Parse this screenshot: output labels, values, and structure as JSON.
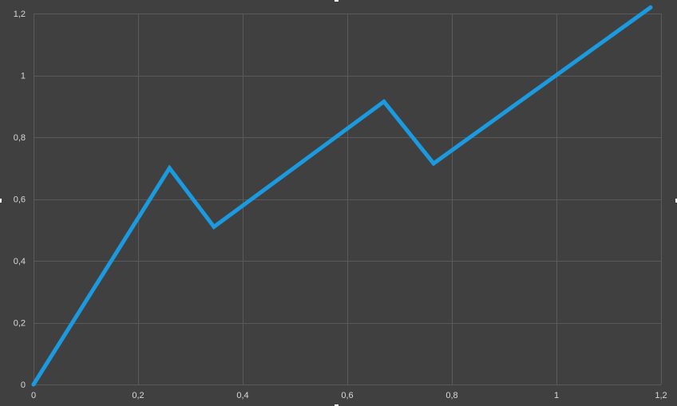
{
  "chart_data": {
    "type": "line",
    "title": "",
    "xlabel": "",
    "ylabel": "",
    "xlim": [
      0,
      1.2
    ],
    "ylim": [
      0,
      1.2
    ],
    "x_ticks": [
      0,
      0.2,
      0.4,
      0.6,
      0.8,
      1,
      1.2
    ],
    "y_ticks": [
      0,
      0.2,
      0.4,
      0.6,
      0.8,
      1,
      1.2
    ],
    "x_tick_labels": [
      "0",
      "0,2",
      "0,4",
      "0,6",
      "0,8",
      "1",
      "1,2"
    ],
    "y_tick_labels": [
      "0",
      "0,2",
      "0,4",
      "0,6",
      "0,8",
      "1",
      "1,2"
    ],
    "grid": true,
    "legend": "none",
    "series": [
      {
        "color": "#1b9ae0",
        "points": [
          {
            "x": 0,
            "y": 0
          },
          {
            "x": 0.26,
            "y": 0.7
          },
          {
            "x": 0.345,
            "y": 0.51
          },
          {
            "x": 0.67,
            "y": 0.915
          },
          {
            "x": 0.765,
            "y": 0.715
          },
          {
            "x": 1.18,
            "y": 1.22
          }
        ]
      }
    ]
  },
  "colors": {
    "background": "#404040",
    "grid": "#5a5a5a",
    "tick_text": "#d9d9d9"
  }
}
